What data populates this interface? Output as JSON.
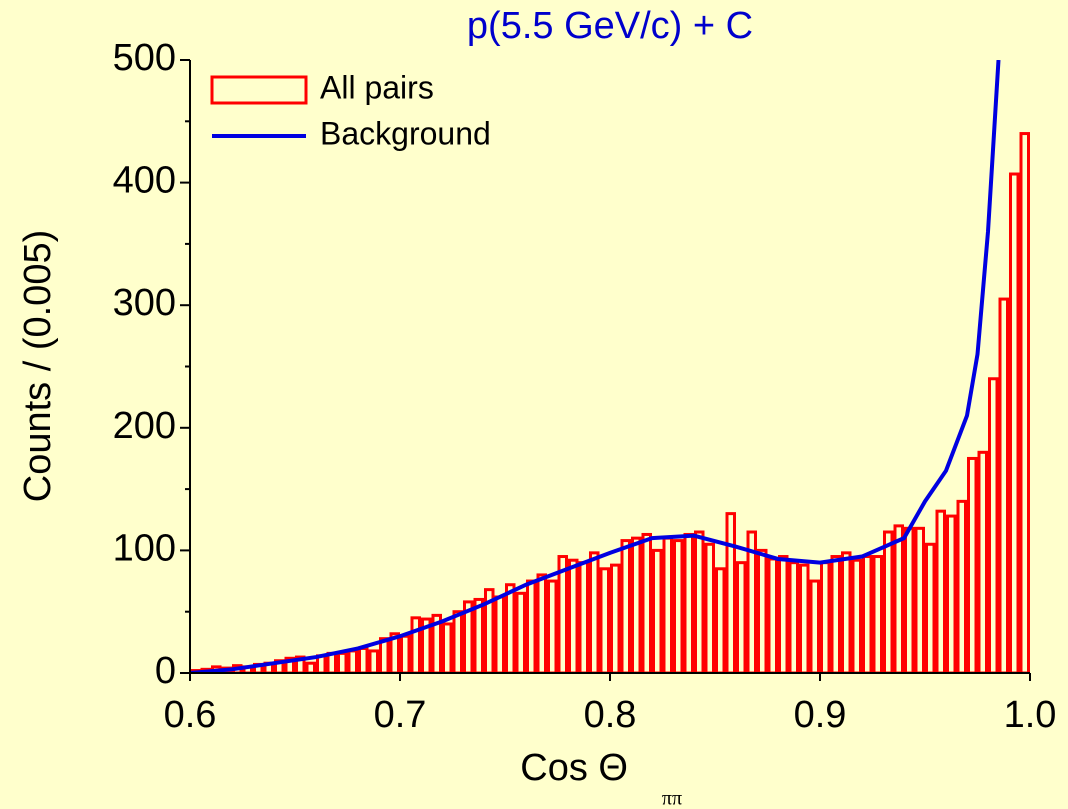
{
  "chart_data": {
    "type": "histogram",
    "title": "p(5.5 GeV/c) + C",
    "x_label": "Cos Θ",
    "x_label_sub": "ππ",
    "y_label": "Counts / (0.005)",
    "xlim": [
      0.6,
      1.0
    ],
    "ylim": [
      0,
      500
    ],
    "xticks": [
      0.6,
      0.7,
      0.8,
      0.9,
      {
        "value": 1.0,
        "label": "1.0"
      }
    ],
    "yticks": [
      0,
      100,
      200,
      300,
      400,
      500
    ],
    "yminorticks": [
      50,
      150,
      250,
      350,
      450
    ],
    "bins": [
      0.6,
      0.605,
      0.61,
      0.615,
      0.62,
      0.625,
      0.63,
      0.635,
      0.64,
      0.645,
      0.65,
      0.655,
      0.66,
      0.665,
      0.67,
      0.675,
      0.68,
      0.685,
      0.69,
      0.695,
      0.7,
      0.705,
      0.71,
      0.715,
      0.72,
      0.725,
      0.73,
      0.735,
      0.74,
      0.745,
      0.75,
      0.755,
      0.76,
      0.765,
      0.77,
      0.775,
      0.78,
      0.785,
      0.79,
      0.795,
      0.8,
      0.805,
      0.81,
      0.815,
      0.82,
      0.825,
      0.83,
      0.835,
      0.84,
      0.845,
      0.85,
      0.855,
      0.86,
      0.865,
      0.87,
      0.875,
      0.88,
      0.885,
      0.89,
      0.895,
      0.9,
      0.905,
      0.91,
      0.915,
      0.92,
      0.925,
      0.93,
      0.935,
      0.94,
      0.945,
      0.95,
      0.955,
      0.96,
      0.965,
      0.97,
      0.975,
      0.98,
      0.985,
      0.99,
      0.995,
      1.0
    ],
    "series": [
      {
        "name": "All pairs",
        "color": "#ff0000",
        "values": [
          2,
          3,
          5,
          4,
          6,
          5,
          7,
          8,
          10,
          12,
          13,
          8,
          14,
          16,
          16,
          18,
          20,
          18,
          28,
          32,
          30,
          45,
          44,
          47,
          40,
          50,
          58,
          60,
          68,
          62,
          72,
          65,
          75,
          80,
          75,
          95,
          92,
          90,
          98,
          85,
          88,
          108,
          110,
          113,
          100,
          110,
          108,
          113,
          115,
          105,
          85,
          130,
          90,
          115,
          100,
          93,
          95,
          90,
          88,
          75,
          90,
          95,
          98,
          92,
          95,
          95,
          115,
          120,
          118,
          118,
          105,
          132,
          128,
          140,
          175,
          180,
          240,
          305,
          407,
          440
        ]
      },
      {
        "name": "Background",
        "color": "#0000e0",
        "type": "line",
        "x": [
          0.6,
          0.62,
          0.64,
          0.66,
          0.68,
          0.7,
          0.72,
          0.74,
          0.76,
          0.78,
          0.8,
          0.82,
          0.84,
          0.86,
          0.88,
          0.9,
          0.92,
          0.94,
          0.95,
          0.96,
          0.97,
          0.975,
          0.98,
          0.985
        ],
        "values": [
          0,
          3,
          8,
          13,
          20,
          30,
          42,
          56,
          72,
          85,
          98,
          110,
          112,
          103,
          93,
          90,
          95,
          110,
          140,
          165,
          210,
          260,
          360,
          500
        ]
      }
    ]
  }
}
